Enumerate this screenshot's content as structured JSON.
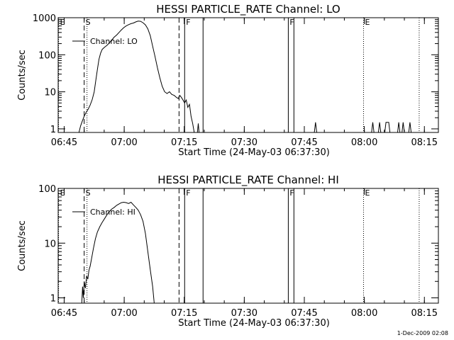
{
  "footer": {
    "timestamp": "1-Dec-2009 02:08"
  },
  "chart_data": [
    {
      "type": "line",
      "title": "HESSI PARTICLE_RATE Channel: LO",
      "xlabel": "Start Time (24-May-03 06:37:30)",
      "ylabel": "Counts/sec",
      "yscale": "log",
      "ylim": [
        0.8,
        1000
      ],
      "xlim": [
        6.0,
        101.0
      ],
      "x_unit": "minutes after 06:37:30",
      "x_ticks": [
        {
          "x": 7.5,
          "label": "06:45"
        },
        {
          "x": 22.5,
          "label": "07:00"
        },
        {
          "x": 37.5,
          "label": "07:15"
        },
        {
          "x": 52.5,
          "label": "07:30"
        },
        {
          "x": 67.5,
          "label": "07:45"
        },
        {
          "x": 82.5,
          "label": "08:00"
        },
        {
          "x": 97.5,
          "label": "08:15"
        }
      ],
      "y_ticks": [
        {
          "y": 1,
          "label": "1"
        },
        {
          "y": 10,
          "label": "10"
        },
        {
          "y": 100,
          "label": "100"
        },
        {
          "y": 1000,
          "label": "1000"
        }
      ],
      "legend": {
        "label": "Channel: LO",
        "position": "top-left"
      },
      "markers": [
        {
          "x": 6.1,
          "style": "dotted",
          "label": "E"
        },
        {
          "x": 12.5,
          "style": "dashed",
          "label": "S"
        },
        {
          "x": 13.2,
          "style": "dotted",
          "label": ""
        },
        {
          "x": 36.2,
          "style": "dashed",
          "label": ""
        },
        {
          "x": 37.6,
          "style": "solid",
          "label": "F"
        },
        {
          "x": 42.2,
          "style": "solid",
          "label": ""
        },
        {
          "x": 63.5,
          "style": "solid",
          "label": "F"
        },
        {
          "x": 64.9,
          "style": "solid",
          "label": ""
        },
        {
          "x": 82.3,
          "style": "dotted",
          "label": "E"
        },
        {
          "x": 96.2,
          "style": "dotted",
          "label": ""
        }
      ],
      "series": [
        {
          "name": "Channel: LO",
          "points": [
            [
              11.2,
              0.8
            ],
            [
              11.6,
              1.2
            ],
            [
              12.0,
              1.6
            ],
            [
              12.5,
              2.2
            ],
            [
              13.0,
              2.8
            ],
            [
              13.5,
              3.4
            ],
            [
              14.0,
              4.4
            ],
            [
              14.5,
              6.2
            ],
            [
              15.0,
              10
            ],
            [
              15.4,
              20
            ],
            [
              15.8,
              40
            ],
            [
              16.2,
              75
            ],
            [
              16.6,
              110
            ],
            [
              17.0,
              140
            ],
            [
              17.6,
              160
            ],
            [
              18.2,
              180
            ],
            [
              18.8,
              210
            ],
            [
              19.4,
              250
            ],
            [
              20.0,
              300
            ],
            [
              20.6,
              340
            ],
            [
              21.2,
              400
            ],
            [
              21.8,
              470
            ],
            [
              22.4,
              540
            ],
            [
              23.0,
              600
            ],
            [
              23.6,
              650
            ],
            [
              24.2,
              690
            ],
            [
              24.8,
              720
            ],
            [
              25.4,
              770
            ],
            [
              26.0,
              810
            ],
            [
              26.6,
              800
            ],
            [
              27.2,
              730
            ],
            [
              27.8,
              640
            ],
            [
              28.4,
              500
            ],
            [
              29.0,
              330
            ],
            [
              29.6,
              170
            ],
            [
              30.2,
              90
            ],
            [
              30.8,
              45
            ],
            [
              31.4,
              24
            ],
            [
              32.0,
              14
            ],
            [
              32.6,
              10
            ],
            [
              33.2,
              9
            ],
            [
              33.8,
              10
            ],
            [
              34.4,
              8.5
            ],
            [
              35.0,
              8
            ],
            [
              35.6,
              7
            ],
            [
              36.0,
              6.6
            ],
            [
              36.4,
              8
            ],
            [
              36.8,
              7
            ],
            [
              37.2,
              6
            ],
            [
              37.6,
              5
            ],
            [
              38.0,
              6
            ],
            [
              38.4,
              3.8
            ],
            [
              38.8,
              4.6
            ],
            [
              39.2,
              2.2
            ],
            [
              39.6,
              1.4
            ],
            [
              40.0,
              0.8
            ]
          ]
        },
        {
          "name": "spikes",
          "points": [
            [
              40.8,
              0.8
            ],
            [
              41.0,
              1.4
            ],
            [
              41.2,
              0.8
            ],
            [
              70.0,
              0.8
            ],
            [
              70.3,
              1.5
            ],
            [
              70.6,
              0.8
            ],
            [
              84.3,
              0.8
            ],
            [
              84.6,
              1.5
            ],
            [
              84.9,
              0.8
            ],
            [
              86.0,
              0.8
            ],
            [
              86.3,
              1.5
            ],
            [
              86.6,
              0.8
            ],
            [
              87.6,
              0.8
            ],
            [
              87.9,
              1.5
            ],
            [
              88.6,
              1.5
            ],
            [
              88.9,
              0.8
            ],
            [
              90.8,
              0.8
            ],
            [
              91.1,
              1.5
            ],
            [
              91.4,
              0.8
            ],
            [
              91.9,
              0.8
            ],
            [
              92.2,
              1.5
            ],
            [
              92.5,
              0.8
            ],
            [
              93.6,
              0.8
            ],
            [
              93.9,
              1.5
            ],
            [
              94.2,
              0.8
            ]
          ]
        }
      ]
    },
    {
      "type": "line",
      "title": "HESSI PARTICLE_RATE Channel: HI",
      "xlabel": "Start Time (24-May-03 06:37:30)",
      "ylabel": "Counts/sec",
      "yscale": "log",
      "ylim": [
        0.8,
        100
      ],
      "xlim": [
        6.0,
        101.0
      ],
      "x_unit": "minutes after 06:37:30",
      "x_ticks": [
        {
          "x": 7.5,
          "label": "06:45"
        },
        {
          "x": 22.5,
          "label": "07:00"
        },
        {
          "x": 37.5,
          "label": "07:15"
        },
        {
          "x": 52.5,
          "label": "07:30"
        },
        {
          "x": 67.5,
          "label": "07:45"
        },
        {
          "x": 82.5,
          "label": "08:00"
        },
        {
          "x": 97.5,
          "label": "08:15"
        }
      ],
      "y_ticks": [
        {
          "y": 1,
          "label": "1"
        },
        {
          "y": 10,
          "label": "10"
        },
        {
          "y": 100,
          "label": "100"
        }
      ],
      "legend": {
        "label": "Channel: HI",
        "position": "top-left"
      },
      "markers": [
        {
          "x": 6.1,
          "style": "dotted",
          "label": "E"
        },
        {
          "x": 12.5,
          "style": "dashed",
          "label": "S"
        },
        {
          "x": 13.2,
          "style": "dotted",
          "label": ""
        },
        {
          "x": 36.2,
          "style": "dashed",
          "label": ""
        },
        {
          "x": 37.6,
          "style": "solid",
          "label": "F"
        },
        {
          "x": 42.2,
          "style": "solid",
          "label": ""
        },
        {
          "x": 63.5,
          "style": "solid",
          "label": "F"
        },
        {
          "x": 64.9,
          "style": "solid",
          "label": ""
        },
        {
          "x": 82.3,
          "style": "dotted",
          "label": "E"
        },
        {
          "x": 96.2,
          "style": "dotted",
          "label": ""
        }
      ],
      "series": [
        {
          "name": "Channel: HI",
          "points": [
            [
              11.9,
              0.8
            ],
            [
              12.1,
              1.6
            ],
            [
              12.3,
              1.0
            ],
            [
              12.5,
              2.0
            ],
            [
              12.8,
              1.5
            ],
            [
              13.1,
              2.5
            ],
            [
              13.4,
              2.2
            ],
            [
              13.7,
              3.2
            ],
            [
              14.0,
              3.8
            ],
            [
              14.4,
              5.5
            ],
            [
              14.8,
              8
            ],
            [
              15.3,
              12
            ],
            [
              15.8,
              16
            ],
            [
              16.4,
              20
            ],
            [
              17.0,
              24
            ],
            [
              17.6,
              28
            ],
            [
              18.2,
              33
            ],
            [
              18.8,
              38
            ],
            [
              19.4,
              42
            ],
            [
              20.0,
              45
            ],
            [
              20.6,
              49
            ],
            [
              21.2,
              52
            ],
            [
              21.8,
              55
            ],
            [
              22.4,
              56
            ],
            [
              23.0,
              55
            ],
            [
              23.6,
              53
            ],
            [
              24.2,
              56
            ],
            [
              24.8,
              50
            ],
            [
              25.4,
              45
            ],
            [
              26.0,
              40
            ],
            [
              26.6,
              33
            ],
            [
              27.2,
              25
            ],
            [
              27.8,
              15
            ],
            [
              28.4,
              7
            ],
            [
              29.0,
              3.3
            ],
            [
              29.6,
              1.6
            ],
            [
              30.0,
              0.8
            ]
          ]
        }
      ]
    }
  ]
}
